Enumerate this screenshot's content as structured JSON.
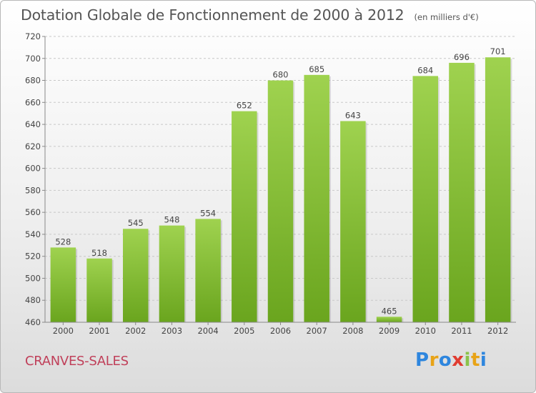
{
  "header": {
    "title": "Dotation Globale de Fonctionnement de 2000 à 2012",
    "subtitle": "(en milliers d'€)"
  },
  "footer": {
    "place": "CRANVES-SALES",
    "logo": {
      "letters": [
        "P",
        "r",
        "o",
        "x",
        "i",
        "t",
        "i"
      ],
      "colors": [
        "#2e86de",
        "#e8a317",
        "#2e86de",
        "#e03c31",
        "#8bc34a",
        "#e8a317",
        "#2e86de"
      ]
    }
  },
  "chart_data": {
    "type": "bar",
    "categories": [
      "2000",
      "2001",
      "2002",
      "2003",
      "2004",
      "2005",
      "2006",
      "2007",
      "2008",
      "2009",
      "2010",
      "2011",
      "2012"
    ],
    "values": [
      528,
      518,
      545,
      548,
      554,
      652,
      680,
      685,
      643,
      465,
      684,
      696,
      701
    ],
    "ylim": [
      460,
      720
    ],
    "yticks": [
      460,
      480,
      500,
      520,
      540,
      560,
      580,
      600,
      620,
      640,
      660,
      680,
      700,
      720
    ],
    "grid": true,
    "colors": {
      "bar_top": "#9fd24f",
      "bar_bottom": "#6aa51e",
      "grid": "#c8c8c8"
    }
  }
}
